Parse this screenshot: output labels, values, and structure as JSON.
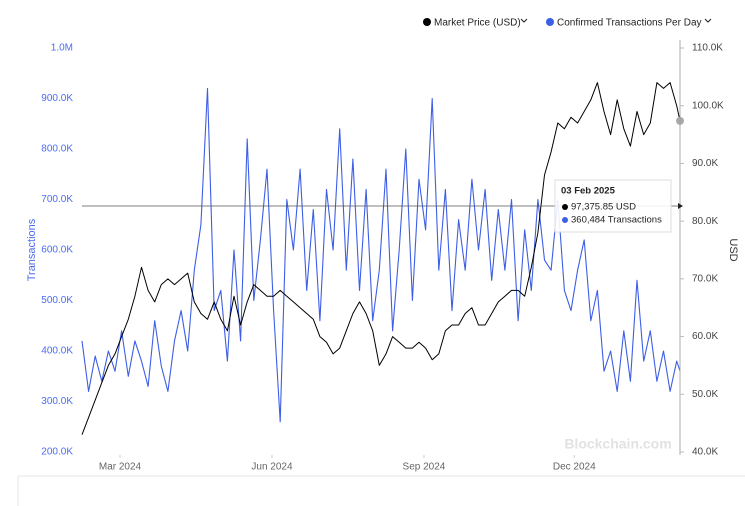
{
  "chart_data": {
    "type": "line",
    "ylabel": "Transactions",
    "y2label": "USD",
    "watermark": "Blockchain.com",
    "legend": "top-right",
    "x": [
      0,
      4,
      8,
      12,
      16,
      20,
      24,
      28,
      32,
      36,
      40,
      44,
      48,
      52,
      56,
      60,
      64,
      68,
      72,
      76,
      80,
      84,
      88,
      92,
      96,
      100,
      104,
      108,
      112,
      116,
      120,
      124,
      128,
      132,
      136,
      140,
      144,
      148,
      152,
      156,
      160,
      164,
      168,
      172,
      176,
      180,
      184,
      188,
      192,
      196,
      200,
      204,
      208,
      212,
      216,
      220,
      224,
      228,
      232,
      236,
      240,
      244,
      248,
      252,
      256,
      260,
      264,
      268,
      272,
      276,
      280,
      284,
      288,
      292,
      296,
      300,
      304,
      308,
      312,
      316,
      320,
      324,
      328,
      332,
      336,
      340,
      344,
      348,
      352,
      356,
      360,
      362
    ],
    "xlim": [
      0,
      362
    ],
    "xticks": [
      {
        "value": 23,
        "label": "Mar 2024"
      },
      {
        "value": 115,
        "label": "Jun 2024"
      },
      {
        "value": 207,
        "label": "Sep 2024"
      },
      {
        "value": 298,
        "label": "Dec 2024"
      }
    ],
    "ylim": [
      200000,
      1000000
    ],
    "yticks": [
      {
        "value": 200000,
        "label": "200.0K"
      },
      {
        "value": 300000,
        "label": "300.0K"
      },
      {
        "value": 400000,
        "label": "400.0K"
      },
      {
        "value": 500000,
        "label": "500.0K"
      },
      {
        "value": 600000,
        "label": "600.0K"
      },
      {
        "value": 700000,
        "label": "700.0K"
      },
      {
        "value": 800000,
        "label": "800.0K"
      },
      {
        "value": 900000,
        "label": "900.0K"
      },
      {
        "value": 1000000,
        "label": "1.0M"
      }
    ],
    "y2lim": [
      40000,
      110000
    ],
    "y2ticks": [
      {
        "value": 40000,
        "label": "40.0K"
      },
      {
        "value": 50000,
        "label": "50.0K"
      },
      {
        "value": 60000,
        "label": "60.0K"
      },
      {
        "value": 70000,
        "label": "70.0K"
      },
      {
        "value": 80000,
        "label": "80.0K"
      },
      {
        "value": 90000,
        "label": "90.0K"
      },
      {
        "value": 100000,
        "label": "100.0K"
      },
      {
        "value": 110000,
        "label": "110.0K"
      }
    ],
    "series": [
      {
        "name": "Market Price (USD)",
        "color": "#000000",
        "axis": "y2",
        "values": [
          43000,
          46000,
          49000,
          52000,
          55000,
          57000,
          60000,
          63000,
          67000,
          72000,
          68000,
          66000,
          69000,
          70000,
          69000,
          70000,
          71000,
          66000,
          64000,
          63000,
          66000,
          63000,
          61000,
          67000,
          62000,
          66000,
          69000,
          68000,
          67000,
          67000,
          68000,
          67000,
          66000,
          65000,
          64000,
          63000,
          60000,
          59000,
          57000,
          58000,
          61000,
          64000,
          66000,
          64000,
          61000,
          55000,
          57000,
          60000,
          59000,
          58000,
          58000,
          59000,
          58000,
          56000,
          57000,
          61000,
          62000,
          62000,
          64000,
          65000,
          62000,
          62000,
          64000,
          66000,
          67000,
          68000,
          68000,
          67000,
          72000,
          78000,
          88000,
          92000,
          97000,
          96000,
          98000,
          97000,
          99000,
          101000,
          104000,
          99000,
          95000,
          101000,
          96000,
          93000,
          99000,
          95000,
          97000,
          104000,
          103000,
          104000,
          100000,
          97375.85
        ]
      },
      {
        "name": "Confirmed Transactions Per Day",
        "color": "#3d5ee6",
        "values": [
          420000,
          320000,
          390000,
          340000,
          400000,
          360000,
          440000,
          350000,
          420000,
          380000,
          330000,
          460000,
          370000,
          320000,
          420000,
          480000,
          400000,
          560000,
          650000,
          920000,
          480000,
          520000,
          380000,
          600000,
          420000,
          820000,
          500000,
          620000,
          760000,
          480000,
          260000,
          700000,
          600000,
          760000,
          520000,
          680000,
          460000,
          720000,
          600000,
          840000,
          560000,
          780000,
          520000,
          720000,
          460000,
          560000,
          760000,
          440000,
          600000,
          800000,
          500000,
          740000,
          640000,
          900000,
          560000,
          720000,
          480000,
          660000,
          560000,
          740000,
          600000,
          720000,
          540000,
          680000,
          560000,
          700000,
          460000,
          640000,
          520000,
          700000,
          580000,
          560000,
          700000,
          520000,
          480000,
          560000,
          620000,
          460000,
          520000,
          360000,
          400000,
          320000,
          440000,
          340000,
          540000,
          380000,
          440000,
          340000,
          400000,
          320000,
          380000,
          360484
        ]
      }
    ],
    "tooltip": {
      "date": "03 Feb 2025",
      "price": "97,375.85 USD",
      "transactions": "360,484 Transactions"
    }
  }
}
